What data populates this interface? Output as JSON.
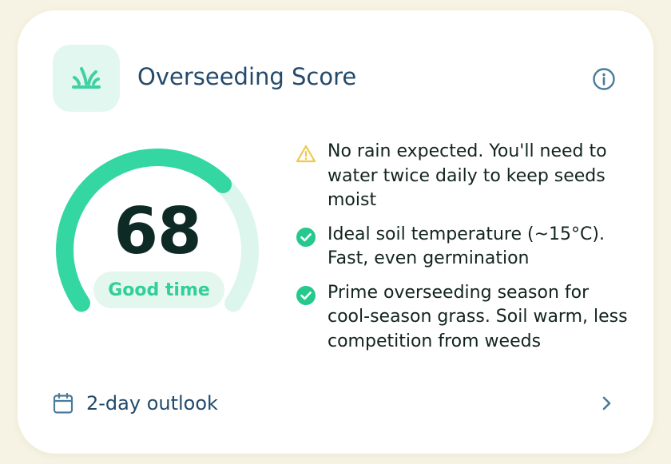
{
  "card": {
    "title": "Overseeding Score",
    "icon": "grass-sprout-icon",
    "info_icon": "info-icon"
  },
  "score": {
    "value": "68",
    "fraction": 0.68,
    "status": "Good time",
    "colors": {
      "accent": "#34d6a2",
      "track": "#dcf6ee",
      "score_text": "#0d2a24"
    }
  },
  "insights": [
    {
      "type": "warning",
      "icon": "warning-triangle-icon",
      "color": "#f2c84b",
      "text": "No rain expected. You'll need to water twice daily to keep seeds moist"
    },
    {
      "type": "positive",
      "icon": "check-circle-icon",
      "color": "#26c88e",
      "text": "Ideal soil temperature (~15°C). Fast, even germination"
    },
    {
      "type": "positive",
      "icon": "check-circle-icon",
      "color": "#26c88e",
      "text": "Prime overseeding season for cool-season grass. Soil warm, less competition from weeds"
    }
  ],
  "outlook": {
    "label": "2-day outlook",
    "icon": "calendar-icon",
    "chevron_icon": "chevron-right-icon"
  }
}
